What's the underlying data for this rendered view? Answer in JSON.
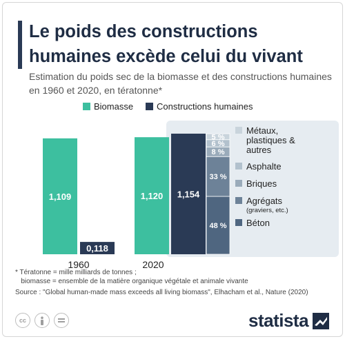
{
  "title": "Le poids des constructions humaines excède celui du vivant",
  "subtitle": "Estimation du poids sec de la biomasse et des constructions humaines en 1960 et 2020, en tératonne*",
  "colors": {
    "biomass": "#3dbf9f",
    "human": "#2a3a55",
    "panel": "#e6ecf1",
    "metals": "#c9d4dc",
    "asphalt": "#b2c1cd",
    "bricks": "#9aabba",
    "aggregates": "#6d8298",
    "concrete": "#4f6680"
  },
  "chart_data": {
    "type": "bar",
    "categories": [
      "1960",
      "2020"
    ],
    "series": [
      {
        "name": "Biomasse",
        "values": [
          1.109,
          1.12
        ],
        "labels": [
          "1,109",
          "1,120"
        ]
      },
      {
        "name": "Constructions humaines",
        "values": [
          0.118,
          1.154
        ],
        "labels": [
          "0,118",
          "1,154"
        ]
      }
    ],
    "breakdown_2020_percent": [
      {
        "name": "Béton",
        "sub": "",
        "value": 48,
        "label": "48 %"
      },
      {
        "name": "Agrégats",
        "sub": "(graviers, etc.)",
        "value": 33,
        "label": "33 %"
      },
      {
        "name": "Briques",
        "sub": "",
        "value": 8,
        "label": "8 %"
      },
      {
        "name": "Asphalte",
        "sub": "",
        "value": 6,
        "label": "6 %"
      },
      {
        "name": "Métaux, plastiques & autres",
        "sub": "",
        "value": 5,
        "label": "5 %"
      }
    ],
    "legend": [
      "Biomasse",
      "Constructions humaines"
    ],
    "ylim": [
      0,
      1.2
    ]
  },
  "footnote": {
    "line1": "* Tératonne = mille milliards de tonnes ;",
    "line2": "   biomasse = ensemble de la matière organique végétale et animale vivante",
    "source": "Source : \"Global human-made mass exceeds all living biomass\", Elhacham et al., Nature (2020)"
  },
  "brand": "statista"
}
